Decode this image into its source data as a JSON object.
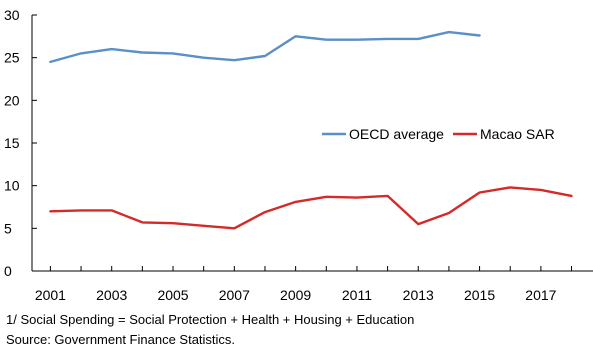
{
  "chart_data": {
    "type": "line",
    "title": "",
    "xlabel": "",
    "ylabel": "",
    "ylim": [
      0,
      30
    ],
    "yticks": [
      "0",
      "5",
      "10",
      "15",
      "20",
      "25",
      "30"
    ],
    "xlim": [
      2000.4,
      2018.7
    ],
    "xticks": [
      "2001",
      "2003",
      "2005",
      "2007",
      "2009",
      "2011",
      "2013",
      "2015",
      "2017"
    ],
    "grid": false,
    "legend": "center-right",
    "series": [
      {
        "name": "OECD average",
        "color": "#5b8fc7",
        "x": [
          2001,
          2002,
          2003,
          2004,
          2005,
          2006,
          2007,
          2008,
          2009,
          2010,
          2011,
          2012,
          2013,
          2014,
          2015
        ],
        "values": [
          24.5,
          25.5,
          26.0,
          25.6,
          25.5,
          25.0,
          24.7,
          25.2,
          27.5,
          27.1,
          27.1,
          27.2,
          27.2,
          28.0,
          27.6
        ]
      },
      {
        "name": "Macao SAR",
        "color": "#d42a2a",
        "x": [
          2001,
          2002,
          2003,
          2004,
          2005,
          2006,
          2007,
          2008,
          2009,
          2010,
          2011,
          2012,
          2013,
          2014,
          2015,
          2016,
          2017,
          2018
        ],
        "values": [
          7.0,
          7.1,
          7.1,
          5.7,
          5.6,
          5.3,
          5.0,
          6.9,
          8.1,
          8.7,
          8.6,
          8.8,
          5.5,
          6.8,
          9.2,
          9.8,
          9.5,
          8.8
        ]
      }
    ]
  },
  "footnotes": {
    "note": "1/ Social Spending = Social Protection + Health + Housing + Education",
    "source": "Source: Government Finance Statistics."
  }
}
